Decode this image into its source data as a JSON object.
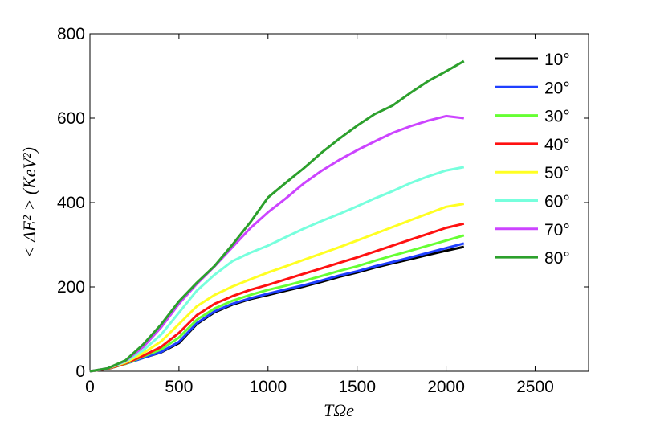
{
  "chart_data": {
    "type": "line",
    "xlabel": "TΩe",
    "ylabel": "< ΔE² > (KeV²)",
    "xlim": [
      0,
      2800
    ],
    "ylim": [
      0,
      800
    ],
    "xticks": [
      0,
      500,
      1000,
      1500,
      2000,
      2500
    ],
    "yticks": [
      0,
      200,
      400,
      600,
      800
    ],
    "grid": false,
    "legend_position": "top-right",
    "series": [
      {
        "name": "10°",
        "color": "#000000",
        "x": [
          0,
          100,
          200,
          300,
          400,
          500,
          600,
          700,
          800,
          900,
          1000,
          1100,
          1200,
          1300,
          1400,
          1500,
          1600,
          1700,
          1800,
          1900,
          2000,
          2100
        ],
        "y": [
          0,
          6,
          18,
          32,
          45,
          67,
          112,
          140,
          158,
          171,
          181,
          191,
          201,
          212,
          224,
          234,
          246,
          256,
          266,
          276,
          286,
          295
        ]
      },
      {
        "name": "20°",
        "color": "#1f3fff",
        "x": [
          0,
          100,
          200,
          300,
          400,
          500,
          600,
          700,
          800,
          900,
          1000,
          1100,
          1200,
          1300,
          1400,
          1500,
          1600,
          1700,
          1800,
          1900,
          2000,
          2100
        ],
        "y": [
          0,
          6,
          18,
          32,
          46,
          70,
          114,
          142,
          160,
          173,
          184,
          194,
          204,
          215,
          227,
          237,
          249,
          259,
          270,
          281,
          292,
          303
        ]
      },
      {
        "name": "30°",
        "color": "#66ff33",
        "x": [
          0,
          100,
          200,
          300,
          400,
          500,
          600,
          700,
          800,
          900,
          1000,
          1100,
          1200,
          1300,
          1400,
          1500,
          1600,
          1700,
          1800,
          1900,
          2000,
          2100
        ],
        "y": [
          0,
          6,
          18,
          35,
          52,
          80,
          122,
          149,
          167,
          181,
          193,
          203,
          214,
          226,
          238,
          249,
          262,
          274,
          286,
          298,
          310,
          322
        ]
      },
      {
        "name": "40°",
        "color": "#ff1111",
        "x": [
          0,
          100,
          200,
          300,
          400,
          500,
          600,
          700,
          800,
          900,
          1000,
          1100,
          1200,
          1300,
          1400,
          1500,
          1600,
          1700,
          1800,
          1900,
          2000,
          2100
        ],
        "y": [
          0,
          6,
          19,
          37,
          58,
          91,
          133,
          160,
          178,
          193,
          205,
          218,
          231,
          244,
          257,
          270,
          284,
          298,
          312,
          326,
          340,
          350
        ]
      },
      {
        "name": "50°",
        "color": "#ffff22",
        "x": [
          0,
          100,
          200,
          300,
          400,
          500,
          600,
          700,
          800,
          900,
          1000,
          1100,
          1200,
          1300,
          1400,
          1500,
          1600,
          1700,
          1800,
          1900,
          2000,
          2100
        ],
        "y": [
          0,
          7,
          21,
          43,
          71,
          112,
          154,
          181,
          201,
          218,
          234,
          249,
          264,
          279,
          294,
          310,
          326,
          342,
          358,
          374,
          390,
          397
        ]
      },
      {
        "name": "60°",
        "color": "#77ffdd",
        "x": [
          0,
          100,
          200,
          300,
          400,
          500,
          600,
          700,
          800,
          900,
          1000,
          1100,
          1200,
          1300,
          1400,
          1500,
          1600,
          1700,
          1800,
          1900,
          2000,
          2100
        ],
        "y": [
          0,
          7,
          23,
          50,
          87,
          139,
          191,
          229,
          261,
          281,
          298,
          318,
          338,
          356,
          373,
          391,
          410,
          427,
          446,
          462,
          476,
          484
        ]
      },
      {
        "name": "70°",
        "color": "#cc44ff",
        "x": [
          0,
          100,
          200,
          300,
          400,
          500,
          600,
          700,
          800,
          900,
          1000,
          1100,
          1200,
          1300,
          1400,
          1500,
          1600,
          1700,
          1800,
          1900,
          2000,
          2100
        ],
        "y": [
          0,
          7,
          25,
          58,
          104,
          160,
          207,
          249,
          294,
          339,
          377,
          410,
          445,
          475,
          501,
          524,
          545,
          565,
          581,
          594,
          605,
          600
        ]
      },
      {
        "name": "80°",
        "color": "#2ca02c",
        "x": [
          0,
          100,
          200,
          300,
          400,
          500,
          600,
          700,
          800,
          900,
          1000,
          1100,
          1200,
          1300,
          1400,
          1500,
          1600,
          1700,
          1800,
          1900,
          2000,
          2100
        ],
        "y": [
          0,
          7,
          26,
          64,
          111,
          166,
          210,
          250,
          300,
          353,
          412,
          447,
          481,
          518,
          551,
          582,
          610,
          630,
          660,
          688,
          711,
          735
        ]
      }
    ]
  }
}
